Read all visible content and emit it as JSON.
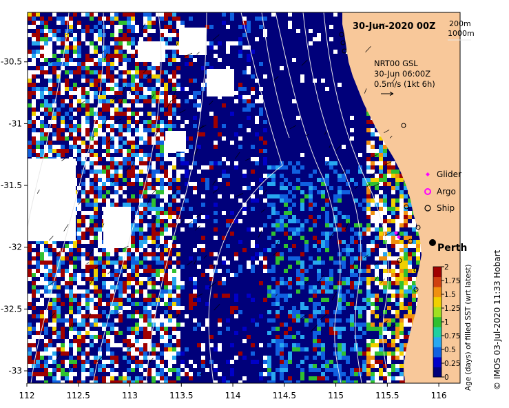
{
  "title": "30-Jun-2020 00Z",
  "depth_labels": {
    "shallow": "200m",
    "deep": "1000m"
  },
  "current_info": {
    "model": "NRT00 GSL",
    "time": "30-Jun 06:00Z",
    "scale": "0.5m/s (1kt 6h)"
  },
  "legend": {
    "glider": "Glider",
    "argo": "Argo",
    "ship": "Ship"
  },
  "city": "Perth",
  "colorbar": {
    "title": "Age (days) of filled SST (wrt latest)",
    "ticks": [
      "0",
      "0.25",
      "0.5",
      "0.75",
      "1",
      "1.25",
      "1.5",
      "1.75",
      "2"
    ],
    "colors": [
      "#00007a",
      "#0000c8",
      "#1060e0",
      "#28a8f0",
      "#20d0a0",
      "#30c030",
      "#a0e020",
      "#f0d000",
      "#f09010",
      "#d04010",
      "#a00000"
    ]
  },
  "axes": {
    "x_ticks": [
      "112",
      "112.5",
      "113",
      "113.5",
      "114",
      "114.5",
      "115",
      "115.5",
      "116"
    ],
    "y_ticks": [
      "-30.5",
      "-31",
      "-31.5",
      "-32",
      "-32.5",
      "-33"
    ]
  },
  "credit": "© IMOS 03-Jul-2020 11:33 Hobart",
  "colors": {
    "land": "#f8c89a",
    "no_data": "#ffffff",
    "deep_sea": "#00007a"
  }
}
